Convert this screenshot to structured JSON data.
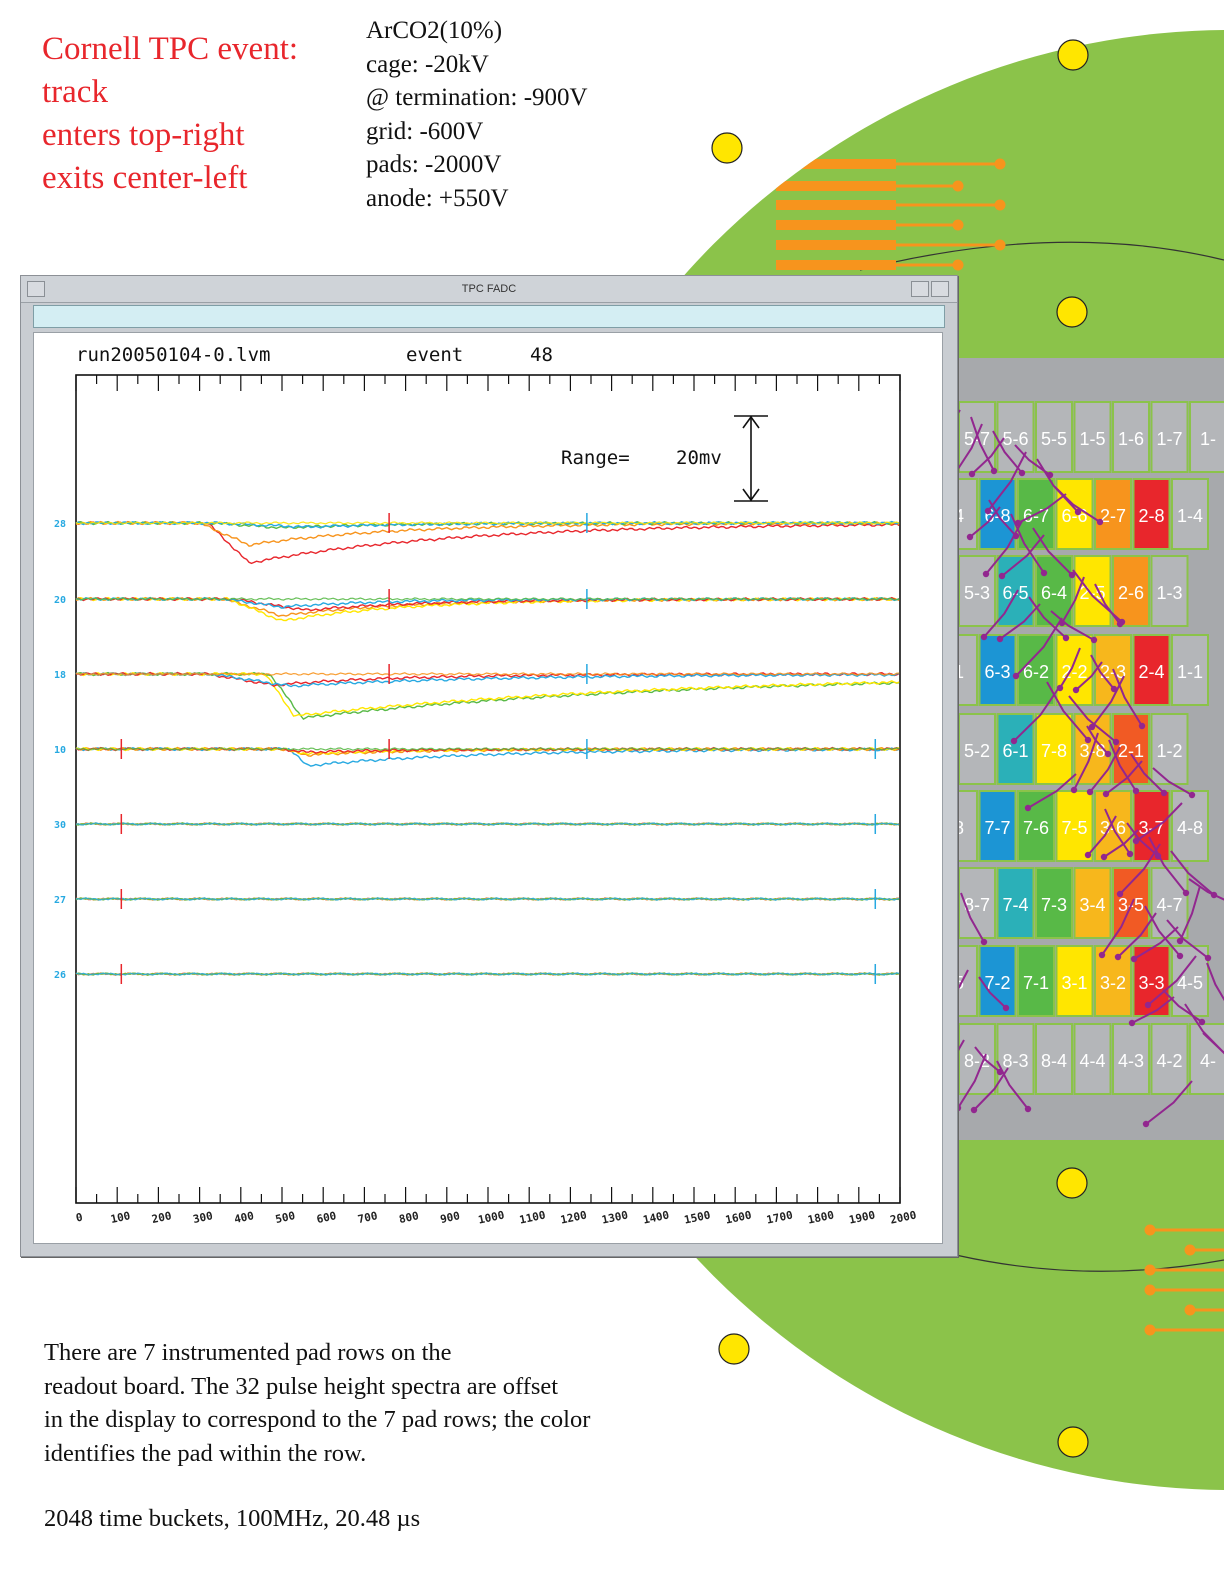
{
  "title_lines": [
    "Cornell TPC event:",
    "track",
    "enters top-right",
    "exits center-left"
  ],
  "parameters": [
    "ArCO2(10%)",
    "cage: -20kV",
    "@ termination: -900V",
    "grid: -600V",
    "pads: -2000V",
    "anode: +550V"
  ],
  "caption_lines": [
    "There are 7 instrumented pad rows on the",
    "readout board. The 32 pulse height spectra are offset",
    "in the display to correspond to the 7 pad rows; the color",
    "identifies the pad within the row."
  ],
  "footer_note": "2048 time buckets, 100MHz, 20.48 µs",
  "window": {
    "title": "TPC FADC"
  },
  "plot": {
    "run_file": "run20050104-0.lvm",
    "event_label": "event",
    "event_number": "48",
    "range_label": "Range=",
    "range_value": "20mv",
    "x_tick_labels": [
      "0",
      "100",
      "200",
      "300",
      "400",
      "500",
      "600",
      "700",
      "800",
      "900",
      "1000",
      "1100",
      "1200",
      "1300",
      "1400",
      "1500",
      "1600",
      "1700",
      "1800",
      "1900",
      "2000"
    ],
    "row_labels": [
      "28",
      "20",
      "18",
      "10",
      "30",
      "27",
      "26"
    ]
  },
  "chart_data": {
    "type": "line",
    "title": "",
    "xlabel": "",
    "ylabel": "",
    "xlim": [
      0,
      2000
    ],
    "x_ticks": [
      0,
      100,
      200,
      300,
      400,
      500,
      600,
      700,
      800,
      900,
      1000,
      1100,
      1200,
      1300,
      1400,
      1500,
      1600,
      1700,
      1800,
      1900,
      2000
    ],
    "range_annotation": "Range= 20mv",
    "rows": [
      {
        "label": "28",
        "pulses": [
          {
            "color": "#e8262c",
            "start": 320,
            "peak_x": 420,
            "depth": 1.0,
            "decay": 500
          },
          {
            "color": "#f7941d",
            "start": 300,
            "peak_x": 420,
            "depth": 0.55,
            "decay": 350
          },
          {
            "color": "#58b947",
            "start": 330,
            "peak_x": 500,
            "depth": 0.12,
            "decay": 250
          },
          {
            "color": "#27a9e1",
            "start": 340,
            "peak_x": 560,
            "depth": 0.1,
            "decay": 250
          }
        ]
      },
      {
        "label": "20",
        "pulses": [
          {
            "color": "#f7941d",
            "start": 360,
            "peak_x": 500,
            "depth": 0.42,
            "decay": 300
          },
          {
            "color": "#ffe600",
            "start": 370,
            "peak_x": 500,
            "depth": 0.55,
            "decay": 300
          },
          {
            "color": "#e8262c",
            "start": 380,
            "peak_x": 560,
            "depth": 0.28,
            "decay": 300
          },
          {
            "color": "#27a9e1",
            "start": 360,
            "peak_x": 500,
            "depth": 0.2,
            "decay": 250
          }
        ]
      },
      {
        "label": "18",
        "pulses": [
          {
            "color": "#58b947",
            "start": 470,
            "peak_x": 550,
            "depth": 1.1,
            "decay": 900
          },
          {
            "color": "#ffe600",
            "start": 460,
            "peak_x": 530,
            "depth": 1.05,
            "decay": 900
          },
          {
            "color": "#e8262c",
            "start": 320,
            "peak_x": 480,
            "depth": 0.28,
            "decay": 300
          },
          {
            "color": "#27a9e1",
            "start": 330,
            "peak_x": 520,
            "depth": 0.3,
            "decay": 500
          }
        ]
      },
      {
        "label": "10",
        "pulses": [
          {
            "color": "#27a9e1",
            "start": 520,
            "peak_x": 560,
            "depth": 0.42,
            "decay": 400
          },
          {
            "color": "#f7941d",
            "start": 500,
            "peak_x": 560,
            "depth": 0.15,
            "decay": 250
          },
          {
            "color": "#ffe600",
            "start": 500,
            "peak_x": 560,
            "depth": 0.12,
            "decay": 250
          },
          {
            "color": "#e8262c",
            "start": 500,
            "peak_x": 560,
            "depth": 0.08,
            "decay": 250
          }
        ]
      },
      {
        "label": "30",
        "pulses": []
      },
      {
        "label": "27",
        "pulses": []
      },
      {
        "label": "26",
        "pulses": []
      }
    ]
  },
  "pad_board": {
    "rows": [
      [
        "5-7",
        "5-6",
        "5-5",
        "1-5",
        "1-6",
        "1-7",
        "1-"
      ],
      [
        "4",
        "6-8",
        "6-7",
        "6-6",
        "2-7",
        "2-8",
        "1-4"
      ],
      [
        "5-3",
        "6-5",
        "6-4",
        "2-5",
        "2-6",
        "1-3"
      ],
      [
        "1",
        "6-3",
        "6-2",
        "2-2",
        "2-3",
        "2-4",
        "1-1"
      ],
      [
        "5-2",
        "6-1",
        "7-8",
        "3-8",
        "2-1",
        "1-2"
      ],
      [
        "8",
        "7-7",
        "7-6",
        "7-5",
        "3-6",
        "3-7",
        "4-8"
      ],
      [
        "8-7",
        "7-4",
        "7-3",
        "3-4",
        "3-5",
        "4-7"
      ],
      [
        "5",
        "7-2",
        "7-1",
        "3-1",
        "3-2",
        "3-3",
        "4-5"
      ],
      [
        "8-2",
        "8-3",
        "8-4",
        "4-4",
        "4-3",
        "4-2",
        "4-"
      ]
    ]
  },
  "colors": {
    "title_red": "#e8262c",
    "board_green": "#8bc34a",
    "board_gray": "#a7a9ac",
    "trace_orange": "#f7941d",
    "hole_yellow": "#ffe600",
    "route_purple": "#92278f",
    "pad_blue": "#1c95d4",
    "pad_teal": "#2bb0b8",
    "pad_green": "#58b947",
    "pad_yellow": "#ffe600",
    "pad_amber": "#f7b71c",
    "pad_orange": "#f7941d",
    "pad_redorange": "#f15a24",
    "pad_red": "#e8262c"
  }
}
